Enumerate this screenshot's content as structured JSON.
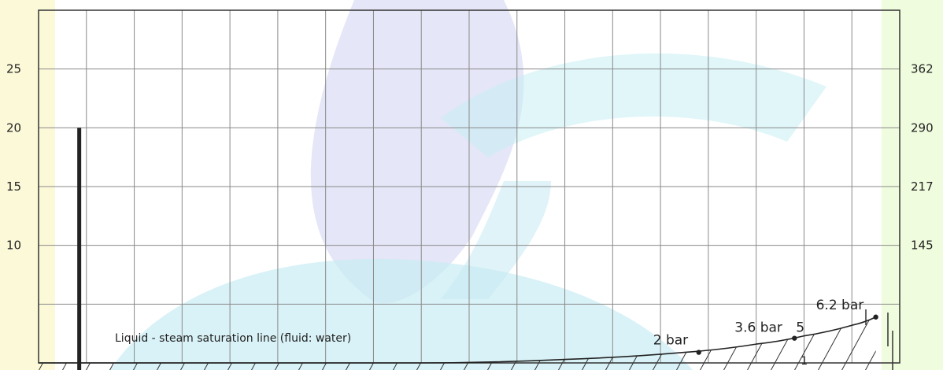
{
  "chart_data": {
    "type": "line",
    "title": "",
    "xlabel": "",
    "ylabel": "",
    "ylim_left": [
      0,
      30
    ],
    "y_ticks_left": [
      "25",
      "20",
      "15",
      "10"
    ],
    "y_ticks_right": [
      "362",
      "290",
      "217",
      "145"
    ],
    "grid": true,
    "grid_columns": 18,
    "grid_rows": 6,
    "series": [
      {
        "name": "Liquid - steam saturation line (fluid: water)",
        "x_grid": [
          0,
          4,
          8,
          11,
          13.5,
          15,
          16,
          17,
          17.5
        ],
        "values": [
          0,
          0,
          0,
          0.3,
          0.9,
          1.6,
          2.3,
          3.2,
          3.9
        ]
      }
    ],
    "points": [
      {
        "label": "2 bar",
        "x_grid": 13.8,
        "y": 0.9
      },
      {
        "label": "3.6 bar",
        "x_grid": 15.8,
        "y": 2.1
      },
      {
        "label": "6.2 bar",
        "x_grid": 17.5,
        "y": 3.9
      }
    ],
    "marker_labels": [
      "5",
      "1"
    ],
    "vertical_bar": {
      "x_grid": 0.85,
      "top": 20
    },
    "hatch": "region below saturation line",
    "colors": {
      "grid": "#8a8a8a",
      "line": "#222222",
      "bar": "#222222"
    }
  }
}
